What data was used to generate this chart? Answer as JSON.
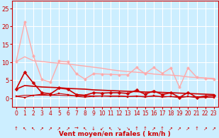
{
  "title": "",
  "xlabel": "Vent moyen/en rafales ( km/h )",
  "ylabel": "",
  "bg_color": "#cceeff",
  "grid_color": "#ffffff",
  "x_ticks": [
    0,
    1,
    2,
    3,
    4,
    5,
    6,
    7,
    8,
    9,
    10,
    11,
    12,
    13,
    14,
    15,
    16,
    17,
    18,
    19,
    20,
    21,
    22,
    23
  ],
  "ylim": [
    -2.5,
    27
  ],
  "xlim": [
    -0.5,
    23.5
  ],
  "lines": [
    {
      "x": [
        0,
        1,
        2,
        3,
        4,
        5,
        6,
        7,
        8,
        9,
        10,
        11,
        12,
        13,
        14,
        15,
        16,
        17,
        18,
        19,
        20,
        21,
        22,
        23
      ],
      "y": [
        10.2,
        21.1,
        11.8,
        5.2,
        4.4,
        10.3,
        10.1,
        6.8,
        5.3,
        6.8,
        6.7,
        6.6,
        6.5,
        6.5,
        8.5,
        6.8,
        8.5,
        6.9,
        8.4,
        3.0,
        8.4,
        5.8,
        5.5,
        5.3
      ],
      "color": "#ffaaaa",
      "lw": 1.0,
      "marker": "o",
      "ms": 2.5
    },
    {
      "x": [
        0,
        1,
        2,
        3,
        4,
        5,
        6,
        7,
        8,
        9,
        10,
        11,
        12,
        13,
        14,
        15,
        16,
        17,
        18,
        19,
        20,
        21,
        22,
        23
      ],
      "y": [
        10.2,
        11.5,
        10.4,
        10.2,
        9.9,
        9.7,
        9.5,
        9.2,
        8.9,
        8.6,
        8.3,
        7.9,
        7.6,
        7.4,
        7.2,
        7.0,
        6.7,
        6.5,
        6.4,
        6.2,
        5.9,
        5.7,
        5.6,
        5.5
      ],
      "color": "#ffaaaa",
      "lw": 1.0,
      "marker": null,
      "ms": 0
    },
    {
      "x": [
        0,
        1,
        2,
        3,
        4,
        5,
        6,
        7,
        8,
        9,
        10,
        11,
        12,
        13,
        14,
        15,
        16,
        17,
        18,
        19,
        20,
        21,
        22,
        23
      ],
      "y": [
        2.5,
        7.2,
        4.2,
        1.5,
        1.2,
        2.8,
        2.5,
        1.0,
        0.8,
        1.5,
        1.4,
        1.5,
        1.5,
        1.3,
        2.2,
        1.1,
        2.0,
        1.0,
        1.5,
        0.2,
        1.6,
        0.2,
        0.6,
        0.7
      ],
      "color": "#cc0000",
      "lw": 1.2,
      "marker": "D",
      "ms": 2.5
    },
    {
      "x": [
        0,
        1,
        2,
        3,
        4,
        5,
        6,
        7,
        8,
        9,
        10,
        11,
        12,
        13,
        14,
        15,
        16,
        17,
        18,
        19,
        20,
        21,
        22,
        23
      ],
      "y": [
        2.5,
        3.5,
        3.3,
        3.1,
        3.0,
        2.9,
        2.7,
        2.6,
        2.5,
        2.3,
        2.2,
        2.1,
        2.0,
        1.9,
        1.8,
        1.7,
        1.7,
        1.6,
        1.5,
        1.4,
        1.3,
        1.2,
        1.1,
        1.0
      ],
      "color": "#cc0000",
      "lw": 1.2,
      "marker": null,
      "ms": 0
    },
    {
      "x": [
        0,
        1,
        2,
        3,
        4,
        5,
        6,
        7,
        8,
        9,
        10,
        11,
        12,
        13,
        14,
        15,
        16,
        17,
        18,
        19,
        20,
        21,
        22,
        23
      ],
      "y": [
        0.5,
        0.2,
        0.8,
        1.1,
        0.8,
        1.3,
        1.0,
        0.5,
        0.3,
        0.5,
        0.6,
        0.5,
        0.5,
        0.4,
        0.6,
        0.3,
        0.7,
        0.3,
        0.5,
        0.1,
        0.5,
        0.1,
        0.2,
        0.2
      ],
      "color": "#cc0000",
      "lw": 0.8,
      "marker": "s",
      "ms": 2.0
    },
    {
      "x": [
        0,
        1,
        2,
        3,
        4,
        5,
        6,
        7,
        8,
        9,
        10,
        11,
        12,
        13,
        14,
        15,
        16,
        17,
        18,
        19,
        20,
        21,
        22,
        23
      ],
      "y": [
        0.5,
        0.8,
        0.8,
        0.8,
        0.8,
        0.8,
        0.7,
        0.7,
        0.7,
        0.6,
        0.6,
        0.6,
        0.6,
        0.5,
        0.5,
        0.5,
        0.5,
        0.5,
        0.4,
        0.4,
        0.4,
        0.4,
        0.3,
        0.3
      ],
      "color": "#cc0000",
      "lw": 0.8,
      "marker": null,
      "ms": 0
    }
  ],
  "yticks": [
    0,
    5,
    10,
    15,
    20,
    25
  ],
  "wind_arrows": [
    "↑",
    "↖",
    "↖",
    "↗",
    "↗",
    "↗",
    "↗",
    "→",
    "↖",
    "↓",
    "↙",
    "↖",
    "↘",
    "↘",
    "↑",
    "↑",
    "↗",
    "↑",
    "↗",
    "↗",
    "↗",
    "↑",
    "↗",
    "↗"
  ]
}
